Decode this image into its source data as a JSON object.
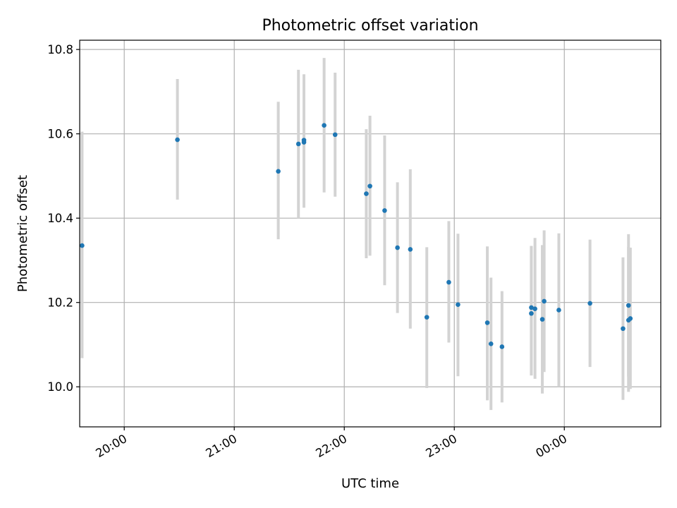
{
  "chart_data": {
    "type": "scatter",
    "title": "Photometric offset variation",
    "xlabel": "UTC time",
    "ylabel": "Photometric offset",
    "x_axis_type": "time",
    "xlim": [
      "19:37",
      "00:52"
    ],
    "ylim": [
      9.905,
      10.822
    ],
    "grid": true,
    "x_tick_labels": [
      "20:00",
      "21:00",
      "22:00",
      "23:00",
      "00:00"
    ],
    "x_tick_times": [
      "20:00",
      "21:00",
      "22:00",
      "23:00",
      "00:00"
    ],
    "y_ticks": [
      10.0,
      10.2,
      10.4,
      10.6,
      10.8
    ],
    "y_tick_labels": [
      "10.0",
      "10.2",
      "10.4",
      "10.6",
      "10.8"
    ],
    "marker_color": "#1f77b4",
    "errorbar_color": "#d3d3d3",
    "points": [
      {
        "time": "19:37",
        "y": 10.335,
        "err_low": 10.068,
        "err_high": 10.605
      },
      {
        "time": "20:29",
        "y": 10.586,
        "err_low": 10.444,
        "err_high": 10.73
      },
      {
        "time": "21:24",
        "y": 10.511,
        "err_low": 10.35,
        "err_high": 10.676
      },
      {
        "time": "21:35",
        "y": 10.576,
        "err_low": 10.4,
        "err_high": 10.752
      },
      {
        "time": "21:38",
        "y": 10.58,
        "err_low": 10.425,
        "err_high": 10.741
      },
      {
        "time": "21:38",
        "y": 10.585,
        "err_low": 10.425,
        "err_high": 10.741
      },
      {
        "time": "21:49",
        "y": 10.62,
        "err_low": 10.461,
        "err_high": 10.78
      },
      {
        "time": "21:55",
        "y": 10.598,
        "err_low": 10.451,
        "err_high": 10.745
      },
      {
        "time": "22:12",
        "y": 10.458,
        "err_low": 10.305,
        "err_high": 10.611
      },
      {
        "time": "22:14",
        "y": 10.476,
        "err_low": 10.311,
        "err_high": 10.643
      },
      {
        "time": "22:22",
        "y": 10.418,
        "err_low": 10.241,
        "err_high": 10.596
      },
      {
        "time": "22:29",
        "y": 10.33,
        "err_low": 10.175,
        "err_high": 10.485
      },
      {
        "time": "22:36",
        "y": 10.326,
        "err_low": 10.138,
        "err_high": 10.516
      },
      {
        "time": "22:45",
        "y": 10.165,
        "err_low": 9.997,
        "err_high": 10.331
      },
      {
        "time": "22:57",
        "y": 10.248,
        "err_low": 10.105,
        "err_high": 10.393
      },
      {
        "time": "23:02",
        "y": 10.195,
        "err_low": 10.025,
        "err_high": 10.363
      },
      {
        "time": "23:18",
        "y": 10.152,
        "err_low": 9.968,
        "err_high": 10.333
      },
      {
        "time": "23:20",
        "y": 10.102,
        "err_low": 9.945,
        "err_high": 10.259
      },
      {
        "time": "23:26",
        "y": 10.095,
        "err_low": 9.963,
        "err_high": 10.227
      },
      {
        "time": "23:42",
        "y": 10.174,
        "err_low": 10.027,
        "err_high": 10.334
      },
      {
        "time": "23:42",
        "y": 10.188,
        "err_low": 10.027,
        "err_high": 10.334
      },
      {
        "time": "23:44",
        "y": 10.185,
        "err_low": 10.019,
        "err_high": 10.353
      },
      {
        "time": "23:48",
        "y": 10.16,
        "err_low": 9.984,
        "err_high": 10.336
      },
      {
        "time": "23:49",
        "y": 10.203,
        "err_low": 10.035,
        "err_high": 10.371
      },
      {
        "time": "23:57",
        "y": 10.182,
        "err_low": 10.0,
        "err_high": 10.364
      },
      {
        "time": "00:14",
        "y": 10.198,
        "err_low": 10.047,
        "err_high": 10.349
      },
      {
        "time": "00:32",
        "y": 10.138,
        "err_low": 9.969,
        "err_high": 10.307
      },
      {
        "time": "00:35",
        "y": 10.193,
        "err_low": 10.024,
        "err_high": 10.362
      },
      {
        "time": "00:35",
        "y": 10.158,
        "err_low": 9.988,
        "err_high": 10.332
      },
      {
        "time": "00:36",
        "y": 10.162,
        "err_low": 9.995,
        "err_high": 10.33
      }
    ]
  }
}
